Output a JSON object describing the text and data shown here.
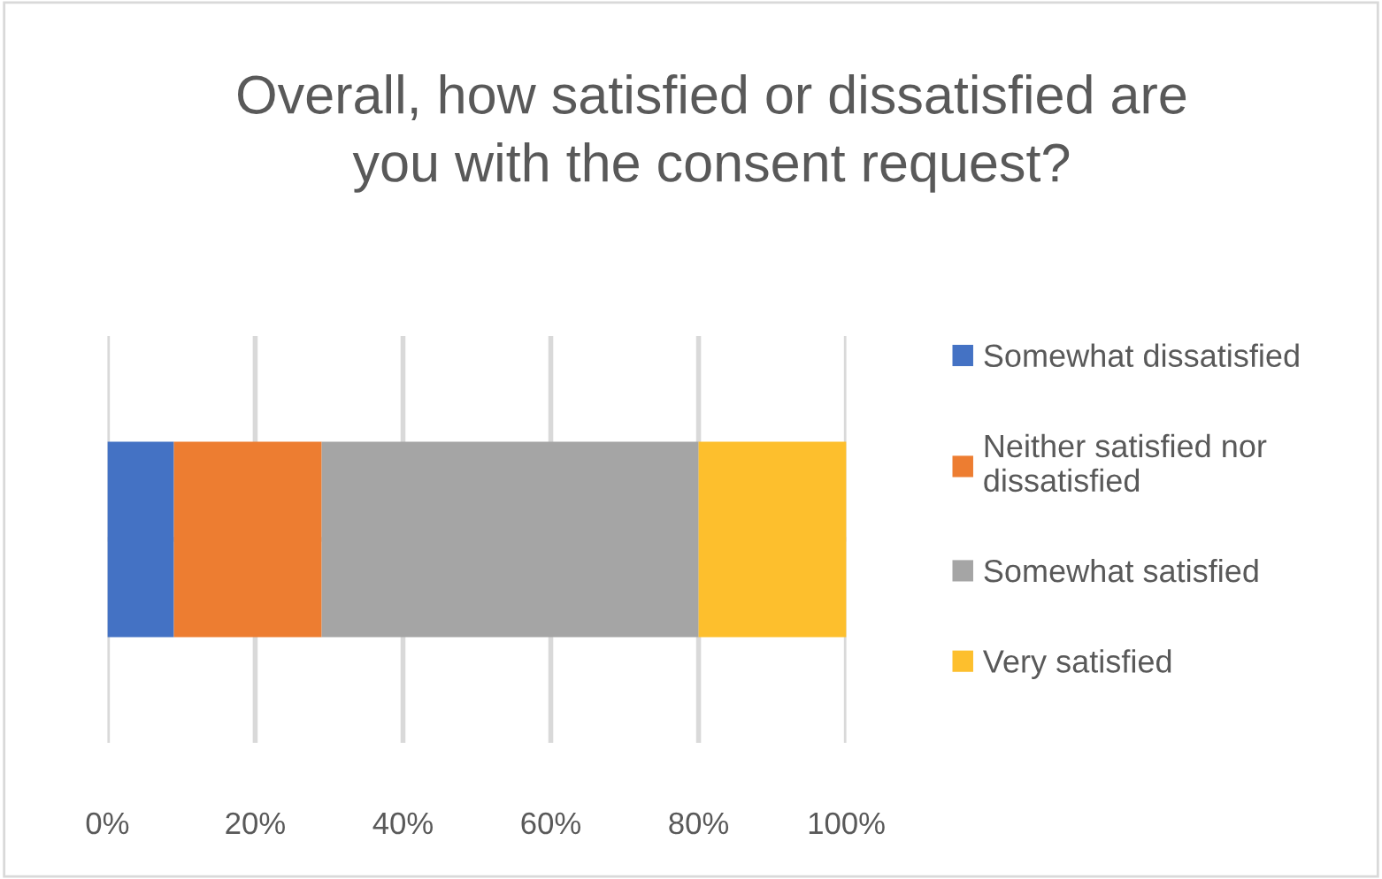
{
  "chart_data": {
    "type": "bar",
    "title": "Overall, how satisfied or dissatisfied are you with the consent request?",
    "categories": [
      null
    ],
    "orientation": "horizontal",
    "stacked": true,
    "series": [
      {
        "name": "Somewhat dissatisfied",
        "color": "#4472c4",
        "values": [
          9
        ]
      },
      {
        "name": "Neither satisfied nor dissatisfied",
        "color": "#ed7d31",
        "values": [
          20
        ]
      },
      {
        "name": "Somewhat satisfied",
        "color": "#a5a5a5",
        "values": [
          51
        ]
      },
      {
        "name": "Very satisfied",
        "color": "#fdbf2d",
        "values": [
          20
        ]
      }
    ],
    "xlim": [
      0,
      100
    ],
    "xticks": [
      {
        "value": 0,
        "label": "0%"
      },
      {
        "value": 20,
        "label": "20%"
      },
      {
        "value": 40,
        "label": "40%"
      },
      {
        "value": 60,
        "label": "60%"
      },
      {
        "value": 80,
        "label": "80%"
      },
      {
        "value": 100,
        "label": "100%"
      }
    ],
    "grid": "x",
    "legend": "right",
    "tick_labels": "x"
  }
}
